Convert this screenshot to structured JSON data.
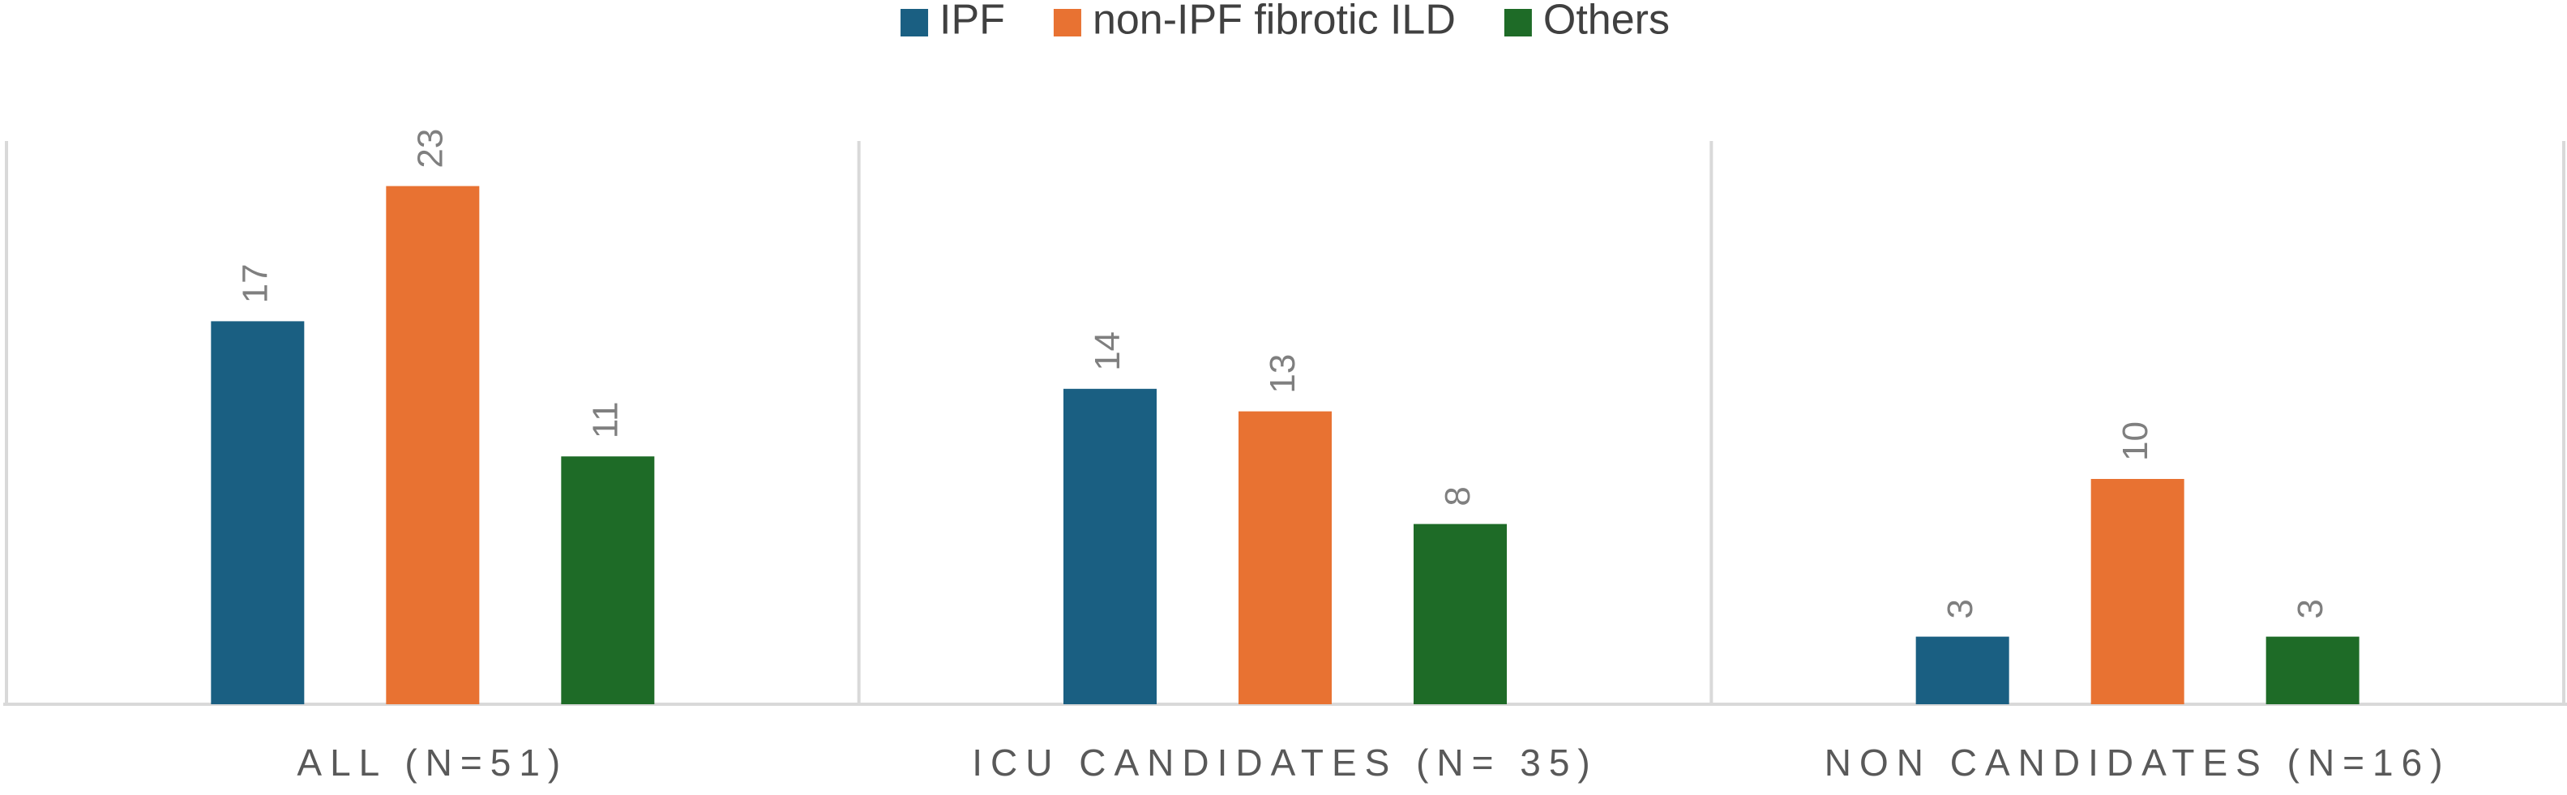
{
  "chart_data": {
    "type": "bar",
    "categories": [
      "ALL (N=51)",
      "ICU CANDIDATES (N= 35)",
      "NON CANDIDATES (N=16)"
    ],
    "series": [
      {
        "name": "IPF",
        "color": "#1a5f82",
        "values": [
          17,
          14,
          3
        ]
      },
      {
        "name": "non-IPF fibrotic ILD",
        "color": "#e87232",
        "values": [
          23,
          13,
          10
        ]
      },
      {
        "name": "Others",
        "color": "#1e6b27",
        "values": [
          11,
          8,
          3
        ]
      }
    ],
    "ylim": [
      0,
      25
    ],
    "legend": "top"
  }
}
